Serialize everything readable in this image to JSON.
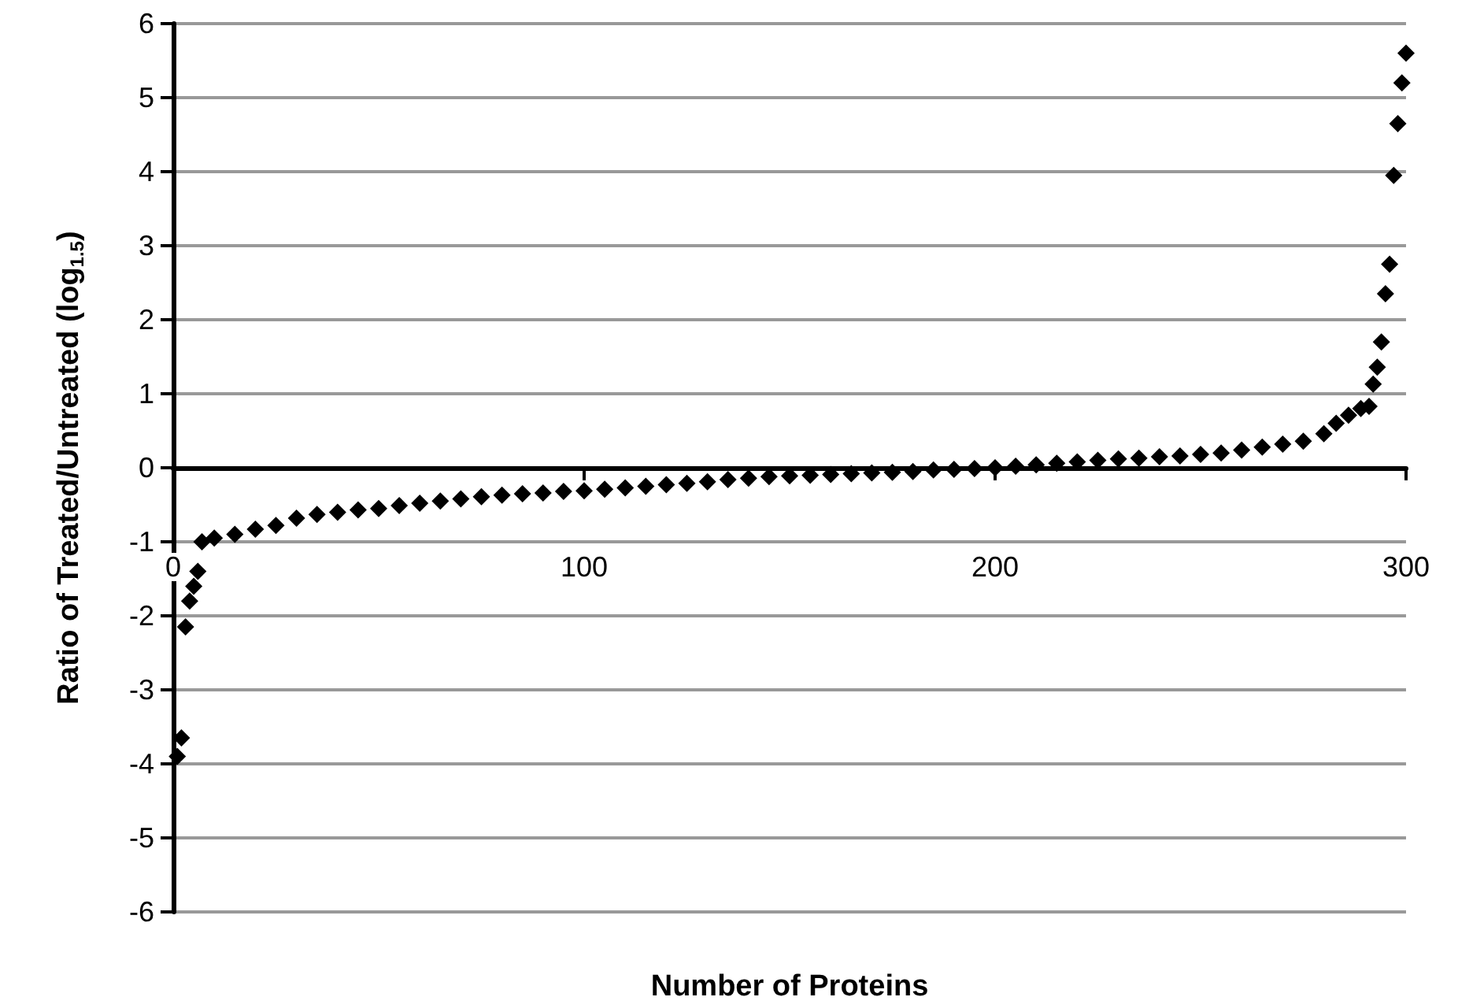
{
  "chart_data": {
    "type": "scatter",
    "xlabel": "Number of Proteins",
    "ylabel": "Ratio of Treated/Untreated (log$_{1.5}$)",
    "x": [
      1,
      2,
      3,
      4,
      5,
      6,
      7,
      10,
      15,
      20,
      25,
      30,
      35,
      40,
      45,
      50,
      55,
      60,
      65,
      70,
      75,
      80,
      85,
      90,
      95,
      100,
      105,
      110,
      115,
      120,
      125,
      130,
      135,
      140,
      145,
      150,
      155,
      160,
      165,
      170,
      175,
      180,
      185,
      190,
      195,
      200,
      205,
      210,
      215,
      220,
      225,
      230,
      235,
      240,
      245,
      250,
      255,
      260,
      265,
      270,
      275,
      280,
      283,
      286,
      289,
      291,
      292,
      293,
      294,
      295,
      296,
      297,
      298,
      299,
      300
    ],
    "series": [
      {
        "color": "#000000",
        "values": [
          -3.9,
          -3.65,
          -2.15,
          -1.8,
          -1.6,
          -1.4,
          -1.0,
          -0.95,
          -0.9,
          -0.83,
          -0.78,
          -0.68,
          -0.63,
          -0.6,
          -0.57,
          -0.55,
          -0.51,
          -0.48,
          -0.45,
          -0.42,
          -0.39,
          -0.37,
          -0.35,
          -0.34,
          -0.32,
          -0.31,
          -0.29,
          -0.27,
          -0.25,
          -0.23,
          -0.21,
          -0.19,
          -0.16,
          -0.14,
          -0.12,
          -0.11,
          -0.1,
          -0.09,
          -0.08,
          -0.07,
          -0.06,
          -0.05,
          -0.03,
          -0.02,
          -0.01,
          0.0,
          0.02,
          0.04,
          0.06,
          0.08,
          0.1,
          0.12,
          0.13,
          0.15,
          0.16,
          0.18,
          0.2,
          0.24,
          0.28,
          0.32,
          0.36,
          0.46,
          0.6,
          0.71,
          0.8,
          0.83,
          1.13,
          1.36,
          1.7,
          2.35,
          2.75,
          3.95,
          4.65,
          5.2,
          5.6
        ]
      }
    ],
    "xlim": [
      0,
      300
    ],
    "xticks": [
      0,
      100,
      200,
      300
    ],
    "ylim": [
      -6,
      6
    ],
    "yticks": [
      -6,
      -5,
      -4,
      -3,
      -2,
      -1,
      0,
      1,
      2,
      3,
      4,
      5,
      6
    ],
    "grid": "y",
    "marker": "diamond"
  }
}
